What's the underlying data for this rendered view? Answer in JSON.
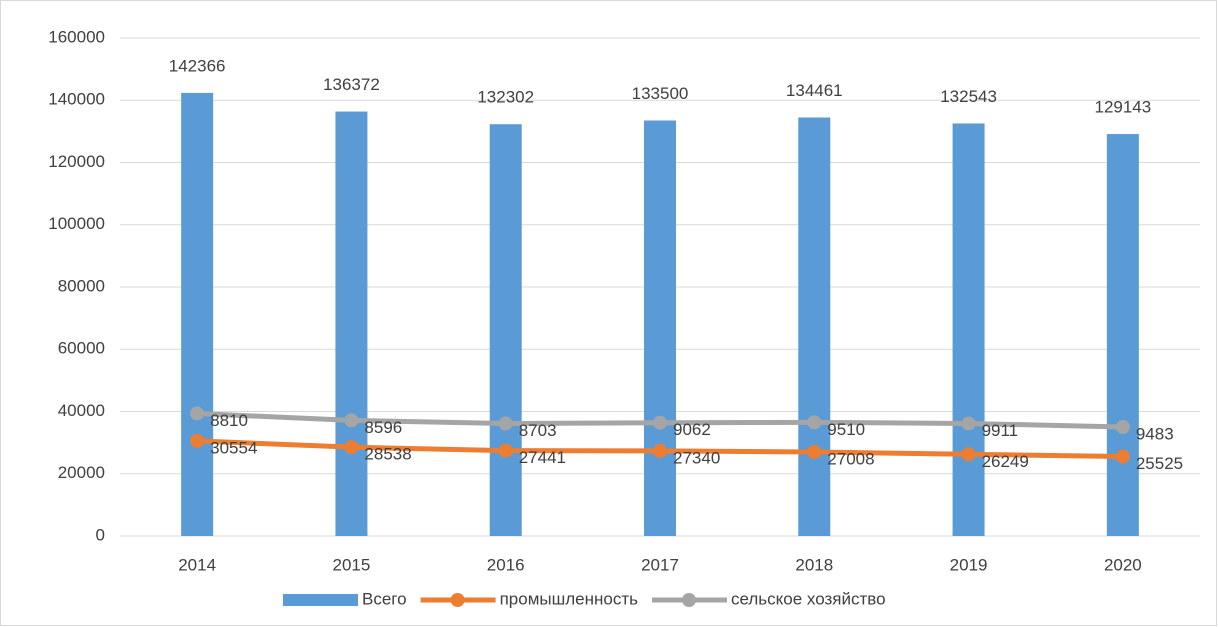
{
  "chart_data": {
    "type": "combo",
    "categories": [
      "2014",
      "2015",
      "2016",
      "2017",
      "2018",
      "2019",
      "2020"
    ],
    "series": [
      {
        "name": "Всего",
        "type": "bar",
        "color": "#5b9bd5",
        "values": [
          142366,
          136372,
          132302,
          133500,
          134461,
          132543,
          129143
        ]
      },
      {
        "name": "промышленность",
        "type": "line",
        "color": "#ed7d31",
        "values": [
          30554,
          28538,
          27441,
          27340,
          27008,
          26249,
          25525
        ]
      },
      {
        "name": "сельское хозяйство",
        "type": "line",
        "color": "#a5a5a5",
        "stacked": true,
        "values": [
          8810,
          8596,
          8703,
          9062,
          9510,
          9911,
          9483
        ]
      }
    ],
    "ylim": [
      0,
      160000
    ],
    "yticks": [
      0,
      20000,
      40000,
      60000,
      80000,
      100000,
      120000,
      140000,
      160000
    ],
    "grid": true,
    "legend": "bottom"
  }
}
